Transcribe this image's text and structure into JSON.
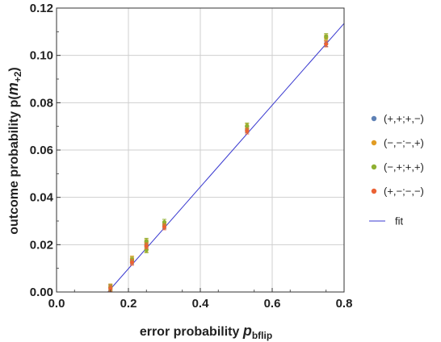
{
  "chart_data": {
    "type": "scatter",
    "xlabel_text": "error probability ",
    "xlabel_var": "p",
    "xlabel_sub": "bflip",
    "ylabel_text": "outcome probability p(",
    "ylabel_var": "m",
    "ylabel_sub": "+2",
    "ylabel_close": ")",
    "xlim": [
      0.0,
      0.8
    ],
    "ylim": [
      0.0,
      0.12
    ],
    "xticks": [
      0.0,
      0.2,
      0.4,
      0.6,
      0.8
    ],
    "xtick_labels": [
      "0.0",
      "0.2",
      "0.4",
      "0.6",
      "0.8"
    ],
    "yticks": [
      0.0,
      0.02,
      0.04,
      0.06,
      0.08,
      0.1,
      0.12
    ],
    "ytick_labels": [
      "0.00",
      "0.02",
      "0.04",
      "0.06",
      "0.08",
      "0.10",
      "0.12"
    ],
    "grid": true,
    "legend_position": "right",
    "series": [
      {
        "name": "(+,+;+,−)",
        "color": "#5e81b5",
        "x": [
          0.15,
          0.21,
          0.25,
          0.3,
          0.53,
          0.75
        ],
        "y": [
          0.002,
          0.013,
          0.02,
          0.028,
          0.0685,
          0.105
        ]
      },
      {
        "name": "(−,−;−,+)",
        "color": "#e19c24",
        "x": [
          0.15,
          0.21,
          0.25,
          0.25,
          0.3,
          0.53,
          0.75
        ],
        "y": [
          0.0022,
          0.014,
          0.021,
          0.018,
          0.0285,
          0.07,
          0.1075
        ]
      },
      {
        "name": "(−,+;+,+)",
        "color": "#8fb032",
        "x": [
          0.15,
          0.21,
          0.25,
          0.25,
          0.3,
          0.53,
          0.75
        ],
        "y": [
          0.0018,
          0.0135,
          0.0215,
          0.0178,
          0.0295,
          0.0702,
          0.108
        ]
      },
      {
        "name": "(+,−;−,−)",
        "color": "#eb6235",
        "x": [
          0.15,
          0.21,
          0.25,
          0.3,
          0.53,
          0.75
        ],
        "y": [
          0.0015,
          0.0125,
          0.0195,
          0.0275,
          0.068,
          0.1048
        ]
      }
    ],
    "fit": {
      "name": "fit",
      "color": "#3a3ad0",
      "x": [
        0.143,
        0.8
      ],
      "y": [
        0.0,
        0.1135
      ]
    }
  }
}
